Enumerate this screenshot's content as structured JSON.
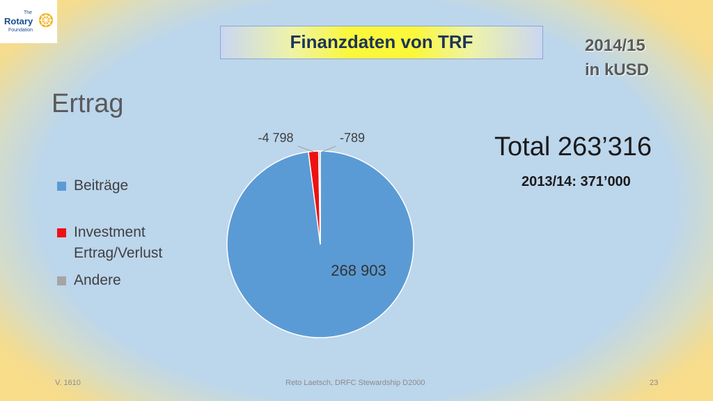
{
  "logo": {
    "line1": "The",
    "line2": "Rotary",
    "line3": "Foundation"
  },
  "banner": {
    "title": "Finanzdaten von TRF"
  },
  "period": {
    "year": "2014/15",
    "unit": "in kUSD"
  },
  "heading": "Ertrag",
  "total": {
    "label": "Total 263’316",
    "previous": "2013/14: 371’000"
  },
  "chart_data": {
    "type": "pie",
    "categories": [
      "Beiträge",
      "Investment Ertrag/Verlust",
      "Andere"
    ],
    "values": [
      268903,
      -4798,
      -789
    ],
    "data_labels": [
      "268 903",
      "-4 798",
      "-789"
    ],
    "colors": [
      "#5b9bd5",
      "#ee1111",
      "#a5a5a5"
    ],
    "legend_position": "left"
  },
  "footer": {
    "version": "V. 1610",
    "author": "Reto Laetsch, DRFC Stewardship D2000",
    "page": "23"
  }
}
